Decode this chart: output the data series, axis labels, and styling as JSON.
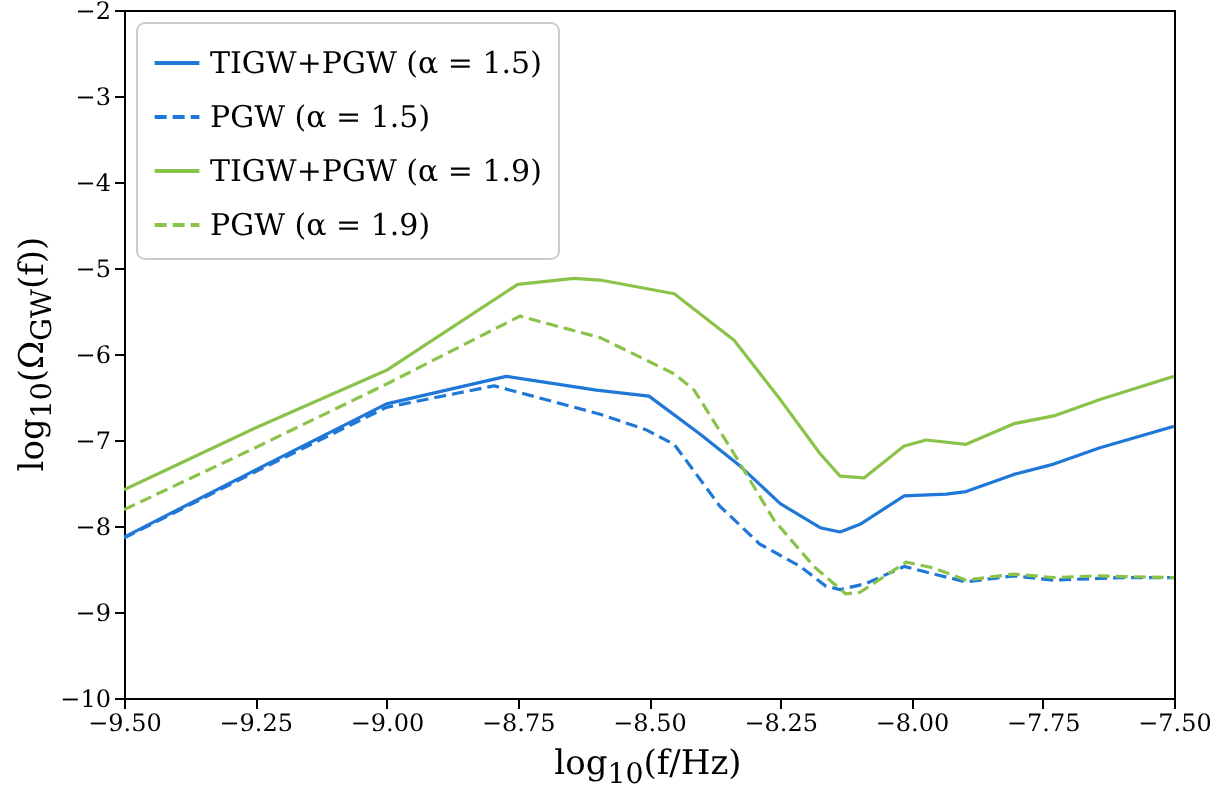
{
  "chart_data": {
    "type": "line",
    "xlabel": "log$_{10}$(f/Hz)",
    "ylabel": "log$_{10}$(Ω$_{GW}$(f))",
    "xlim": [
      -9.5,
      -7.5
    ],
    "ylim": [
      -10,
      -2
    ],
    "xticks": [
      {
        "value": -9.5,
        "label": "−9.50"
      },
      {
        "value": -9.25,
        "label": "−9.25"
      },
      {
        "value": -9.0,
        "label": "−9.00"
      },
      {
        "value": -8.75,
        "label": "−8.75"
      },
      {
        "value": -8.5,
        "label": "−8.50"
      },
      {
        "value": -8.25,
        "label": "−8.25"
      },
      {
        "value": -8.0,
        "label": "−8.00"
      },
      {
        "value": -7.75,
        "label": "−7.75"
      },
      {
        "value": -7.5,
        "label": "−7.50"
      }
    ],
    "yticks": [
      {
        "value": -10,
        "label": "−10"
      },
      {
        "value": -9,
        "label": "−9"
      },
      {
        "value": -8,
        "label": "−8"
      },
      {
        "value": -7,
        "label": "−7"
      },
      {
        "value": -6,
        "label": "−6"
      },
      {
        "value": -5,
        "label": "−5"
      },
      {
        "value": -4,
        "label": "−4"
      },
      {
        "value": -3,
        "label": "−3"
      },
      {
        "value": -2,
        "label": "−2"
      }
    ],
    "grid": false,
    "legend": "top left",
    "marker": "none",
    "series": [
      {
        "name": "TIGW+PGW (α = 1.5)",
        "color": "#1f77d8",
        "line_style": "solid",
        "x": [
          -9.5,
          -9.25,
          -9.0,
          -8.772,
          -8.6,
          -8.5,
          -8.403,
          -8.327,
          -8.25,
          -8.174,
          -8.136,
          -8.098,
          -8.014,
          -7.934,
          -7.896,
          -7.805,
          -7.729,
          -7.641,
          -7.5
        ],
        "values": [
          -8.13,
          -7.35,
          -6.58,
          -6.26,
          -6.42,
          -6.49,
          -6.93,
          -7.3,
          -7.74,
          -8.02,
          -8.07,
          -7.98,
          -7.65,
          -7.63,
          -7.6,
          -7.4,
          -7.28,
          -7.09,
          -6.84
        ]
      },
      {
        "name": "PGW (α = 1.5)",
        "color": "#1f77d8",
        "line_style": "dashed",
        "x": [
          -9.5,
          -9.25,
          -9.0,
          -8.795,
          -8.593,
          -8.506,
          -8.452,
          -8.365,
          -8.289,
          -8.212,
          -8.163,
          -8.136,
          -8.087,
          -8.014,
          -7.957,
          -7.896,
          -7.805,
          -7.729,
          -7.603,
          -7.5
        ],
        "values": [
          -8.14,
          -7.37,
          -6.62,
          -6.37,
          -6.7,
          -6.88,
          -7.05,
          -7.77,
          -8.21,
          -8.47,
          -8.7,
          -8.74,
          -8.67,
          -8.47,
          -8.56,
          -8.65,
          -8.58,
          -8.63,
          -8.6,
          -8.6
        ]
      },
      {
        "name": "TIGW+PGW (α = 1.9)",
        "color": "#8bc34a",
        "line_style": "solid",
        "x": [
          -9.5,
          -9.25,
          -9.0,
          -8.75,
          -8.643,
          -8.593,
          -8.452,
          -8.338,
          -8.25,
          -8.174,
          -8.136,
          -8.09,
          -8.014,
          -7.972,
          -7.896,
          -7.805,
          -7.729,
          -7.641,
          -7.5
        ],
        "values": [
          -7.58,
          -6.86,
          -6.19,
          -5.19,
          -5.12,
          -5.14,
          -5.3,
          -5.84,
          -6.53,
          -7.16,
          -7.42,
          -7.44,
          -7.07,
          -7.0,
          -7.05,
          -6.81,
          -6.72,
          -6.53,
          -6.26
        ]
      },
      {
        "name": "PGW (α = 1.9)",
        "color": "#8bc34a",
        "line_style": "dashed",
        "x": [
          -9.5,
          -9.25,
          -9.0,
          -8.746,
          -8.593,
          -8.452,
          -8.414,
          -8.338,
          -8.262,
          -8.186,
          -8.125,
          -8.098,
          -8.01,
          -7.957,
          -7.896,
          -7.805,
          -7.729,
          -7.652,
          -7.5
        ],
        "values": [
          -7.81,
          -7.09,
          -6.35,
          -5.56,
          -5.81,
          -6.23,
          -6.42,
          -7.16,
          -7.93,
          -8.47,
          -8.79,
          -8.77,
          -8.42,
          -8.49,
          -8.63,
          -8.56,
          -8.6,
          -8.58,
          -8.6
        ]
      }
    ]
  }
}
